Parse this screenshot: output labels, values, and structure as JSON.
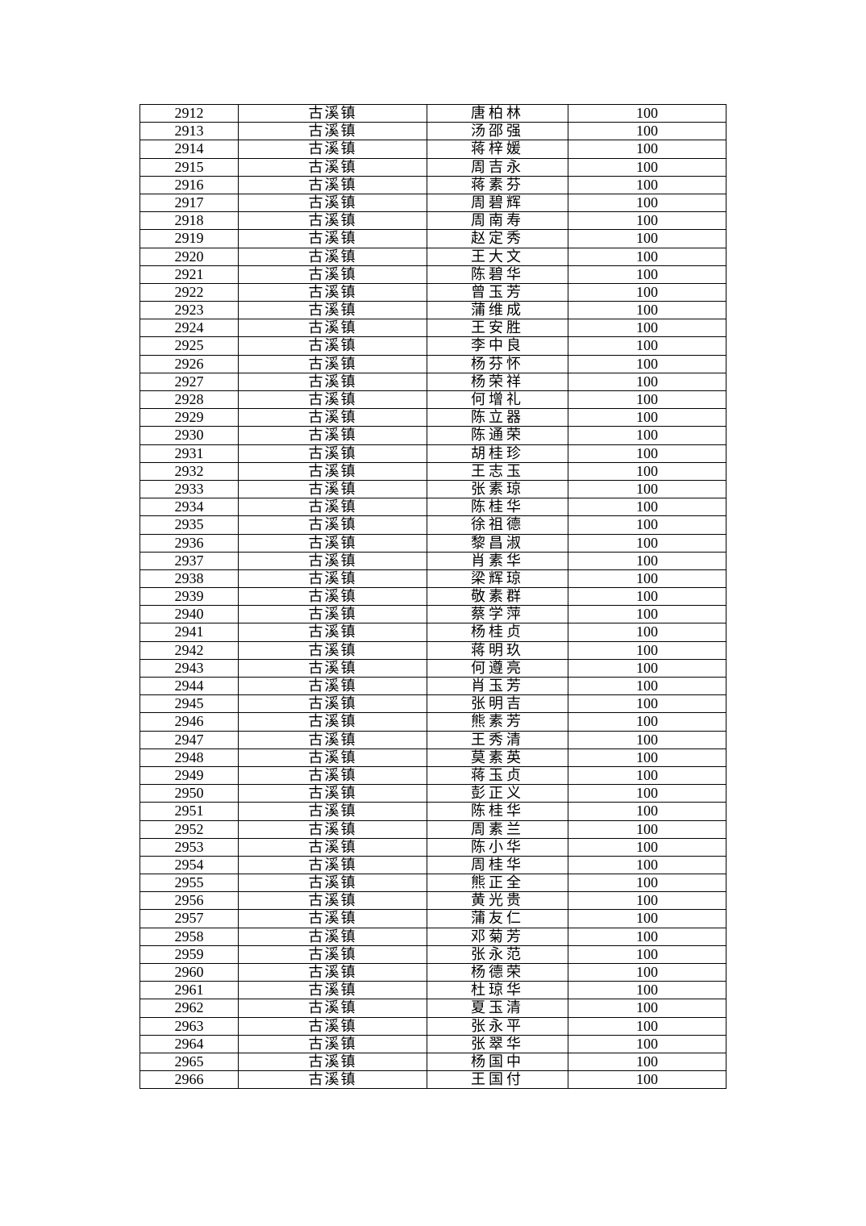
{
  "table": {
    "town": "古溪镇",
    "amount": "100",
    "rows": [
      {
        "no": "2912",
        "name": "唐柏林"
      },
      {
        "no": "2913",
        "name": "汤邵强"
      },
      {
        "no": "2914",
        "name": "蒋梓媛"
      },
      {
        "no": "2915",
        "name": "周吉永"
      },
      {
        "no": "2916",
        "name": "蒋素芬"
      },
      {
        "no": "2917",
        "name": "周碧辉"
      },
      {
        "no": "2918",
        "name": "周南寿"
      },
      {
        "no": "2919",
        "name": "赵定秀"
      },
      {
        "no": "2920",
        "name": "王大文"
      },
      {
        "no": "2921",
        "name": "陈碧华"
      },
      {
        "no": "2922",
        "name": "曾玉芳"
      },
      {
        "no": "2923",
        "name": "蒲维成"
      },
      {
        "no": "2924",
        "name": "王安胜"
      },
      {
        "no": "2925",
        "name": "李中良"
      },
      {
        "no": "2926",
        "name": "杨芬怀"
      },
      {
        "no": "2927",
        "name": "杨荣祥"
      },
      {
        "no": "2928",
        "name": "何增礼"
      },
      {
        "no": "2929",
        "name": "陈立器"
      },
      {
        "no": "2930",
        "name": "陈通荣"
      },
      {
        "no": "2931",
        "name": "胡桂珍"
      },
      {
        "no": "2932",
        "name": "王志玉"
      },
      {
        "no": "2933",
        "name": "张素琼"
      },
      {
        "no": "2934",
        "name": "陈桂华"
      },
      {
        "no": "2935",
        "name": "徐祖德"
      },
      {
        "no": "2936",
        "name": "黎昌淑"
      },
      {
        "no": "2937",
        "name": "肖素华"
      },
      {
        "no": "2938",
        "name": "梁辉琼"
      },
      {
        "no": "2939",
        "name": "敬素群"
      },
      {
        "no": "2940",
        "name": "蔡学萍"
      },
      {
        "no": "2941",
        "name": "杨桂贞"
      },
      {
        "no": "2942",
        "name": "蒋明玖"
      },
      {
        "no": "2943",
        "name": "何遵亮"
      },
      {
        "no": "2944",
        "name": "肖玉芳"
      },
      {
        "no": "2945",
        "name": "张明吉"
      },
      {
        "no": "2946",
        "name": "熊素芳"
      },
      {
        "no": "2947",
        "name": "王秀清"
      },
      {
        "no": "2948",
        "name": "莫素英"
      },
      {
        "no": "2949",
        "name": "蒋玉贞"
      },
      {
        "no": "2950",
        "name": "彭正义"
      },
      {
        "no": "2951",
        "name": "陈桂华"
      },
      {
        "no": "2952",
        "name": "周素兰"
      },
      {
        "no": "2953",
        "name": "陈小华"
      },
      {
        "no": "2954",
        "name": "周桂华"
      },
      {
        "no": "2955",
        "name": "熊正全"
      },
      {
        "no": "2956",
        "name": "黄光贵"
      },
      {
        "no": "2957",
        "name": "蒲友仁"
      },
      {
        "no": "2958",
        "name": "邓菊芳"
      },
      {
        "no": "2959",
        "name": "张永范"
      },
      {
        "no": "2960",
        "name": "杨德荣"
      },
      {
        "no": "2961",
        "name": "杜琼华"
      },
      {
        "no": "2962",
        "name": "夏玉清"
      },
      {
        "no": "2963",
        "name": "张永平"
      },
      {
        "no": "2964",
        "name": "张翠华"
      },
      {
        "no": "2965",
        "name": "杨国中"
      },
      {
        "no": "2966",
        "name": "王国付"
      }
    ]
  }
}
